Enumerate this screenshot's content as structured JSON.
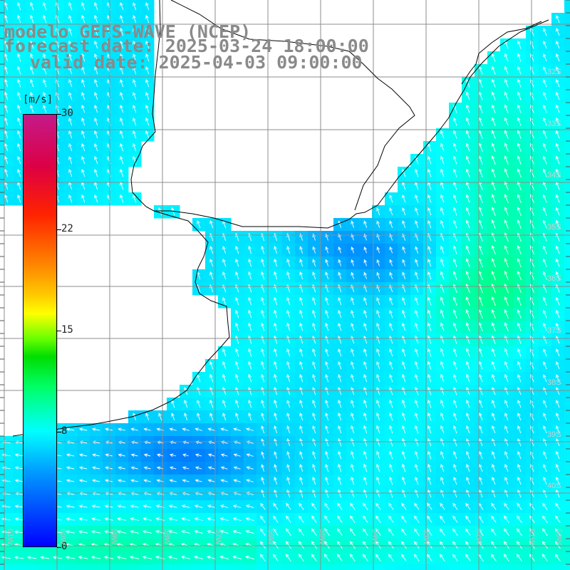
{
  "title": {
    "line1": "modelo GEFS-WAVE (NCEP)",
    "line2": "forecast date: 2025-03-24 18:00:00",
    "line3": "valid date: 2025-04-03 09:00:00"
  },
  "colorbar": {
    "unit": "[m/s]",
    "ticks": [
      {
        "label": "30",
        "value": 30
      },
      {
        "label": "22",
        "value": 22
      },
      {
        "label": "15",
        "value": 15
      },
      {
        "label": "8",
        "value": 8
      },
      {
        "label": "0",
        "value": 0
      }
    ],
    "colors": {
      "min": "#0000ff",
      "low": "#00ffff",
      "mid": "#00dd00",
      "high": "#ffff00",
      "max": "#c41a8a"
    }
  },
  "lat_labels": [
    "32S",
    "33S",
    "34S",
    "35S",
    "36S",
    "37S",
    "38S",
    "39S",
    "40S"
  ],
  "lon_labels": [
    "61W",
    "60W",
    "59W",
    "58W",
    "57W",
    "56W",
    "55W",
    "54W",
    "53W",
    "52W",
    "51W",
    "50W"
  ],
  "colors": {
    "land": "#ffffff",
    "coast": "#000000",
    "grid": "#8c8c8c",
    "arrow": "#ffffff",
    "label": "#8a8a8a"
  }
}
